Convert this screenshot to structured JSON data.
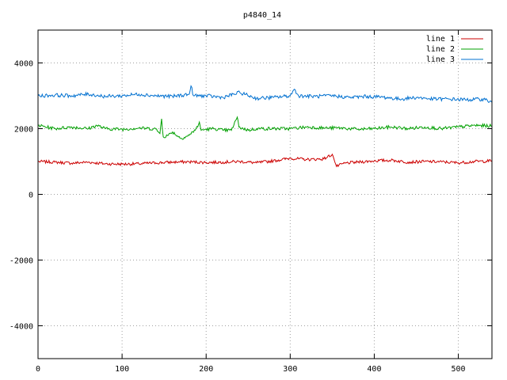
{
  "chart_data": {
    "type": "line",
    "title": "p4840_14",
    "xlabel": "",
    "ylabel": "",
    "xlim": [
      0,
      540
    ],
    "ylim": [
      -5000,
      5000
    ],
    "xticks": [
      0,
      100,
      200,
      300,
      400,
      500
    ],
    "yticks": [
      -4000,
      -2000,
      0,
      2000,
      4000
    ],
    "grid": true,
    "legend_position": "top-right",
    "series": [
      {
        "name": "line 1",
        "color": "#cc0000",
        "base": 1000,
        "noise": 45,
        "points": [
          [
            0,
            1000
          ],
          [
            20,
            980
          ],
          [
            40,
            950
          ],
          [
            60,
            980
          ],
          [
            80,
            930
          ],
          [
            100,
            920
          ],
          [
            120,
            930
          ],
          [
            140,
            960
          ],
          [
            160,
            980
          ],
          [
            180,
            990
          ],
          [
            200,
            970
          ],
          [
            220,
            980
          ],
          [
            240,
            1000
          ],
          [
            260,
            960
          ],
          [
            280,
            1020
          ],
          [
            300,
            1100
          ],
          [
            320,
            1060
          ],
          [
            340,
            1080
          ],
          [
            350,
            1220
          ],
          [
            352,
            1080
          ],
          [
            355,
            850
          ],
          [
            365,
            950
          ],
          [
            380,
            980
          ],
          [
            400,
            1020
          ],
          [
            420,
            1040
          ],
          [
            440,
            980
          ],
          [
            460,
            1000
          ],
          [
            480,
            990
          ],
          [
            500,
            960
          ],
          [
            520,
            1000
          ],
          [
            540,
            1020
          ]
        ]
      },
      {
        "name": "line 2",
        "color": "#00a000",
        "base": 2000,
        "noise": 50,
        "points": [
          [
            0,
            2100
          ],
          [
            20,
            2000
          ],
          [
            40,
            2050
          ],
          [
            60,
            2000
          ],
          [
            70,
            2100
          ],
          [
            80,
            2000
          ],
          [
            100,
            1980
          ],
          [
            120,
            2020
          ],
          [
            140,
            1990
          ],
          [
            145,
            1850
          ],
          [
            147,
            2300
          ],
          [
            149,
            1750
          ],
          [
            155,
            1800
          ],
          [
            160,
            1900
          ],
          [
            170,
            1700
          ],
          [
            180,
            1800
          ],
          [
            190,
            2050
          ],
          [
            192,
            2200
          ],
          [
            194,
            1950
          ],
          [
            200,
            1980
          ],
          [
            210,
            2000
          ],
          [
            220,
            1950
          ],
          [
            230,
            1950
          ],
          [
            237,
            2350
          ],
          [
            239,
            2050
          ],
          [
            250,
            1950
          ],
          [
            260,
            2000
          ],
          [
            280,
            2000
          ],
          [
            300,
            2000
          ],
          [
            320,
            2050
          ],
          [
            340,
            2020
          ],
          [
            360,
            2020
          ],
          [
            380,
            1980
          ],
          [
            400,
            2000
          ],
          [
            420,
            2050
          ],
          [
            440,
            2000
          ],
          [
            460,
            2050
          ],
          [
            480,
            2000
          ],
          [
            500,
            2050
          ],
          [
            520,
            2100
          ],
          [
            540,
            2080
          ]
        ]
      },
      {
        "name": "line 3",
        "color": "#0070d0",
        "base": 3000,
        "noise": 55,
        "points": [
          [
            0,
            3000
          ],
          [
            20,
            3020
          ],
          [
            40,
            3000
          ],
          [
            60,
            3050
          ],
          [
            80,
            2980
          ],
          [
            100,
            3000
          ],
          [
            120,
            3050
          ],
          [
            140,
            3000
          ],
          [
            160,
            2980
          ],
          [
            180,
            3050
          ],
          [
            182,
            3300
          ],
          [
            185,
            3000
          ],
          [
            200,
            3000
          ],
          [
            220,
            2950
          ],
          [
            240,
            3100
          ],
          [
            260,
            2920
          ],
          [
            280,
            2950
          ],
          [
            300,
            3000
          ],
          [
            305,
            3200
          ],
          [
            310,
            3000
          ],
          [
            330,
            2980
          ],
          [
            350,
            3000
          ],
          [
            370,
            2950
          ],
          [
            390,
            2980
          ],
          [
            410,
            2960
          ],
          [
            430,
            2900
          ],
          [
            450,
            2950
          ],
          [
            470,
            2900
          ],
          [
            490,
            2900
          ],
          [
            510,
            2880
          ],
          [
            530,
            2900
          ],
          [
            540,
            2800
          ]
        ]
      }
    ]
  }
}
